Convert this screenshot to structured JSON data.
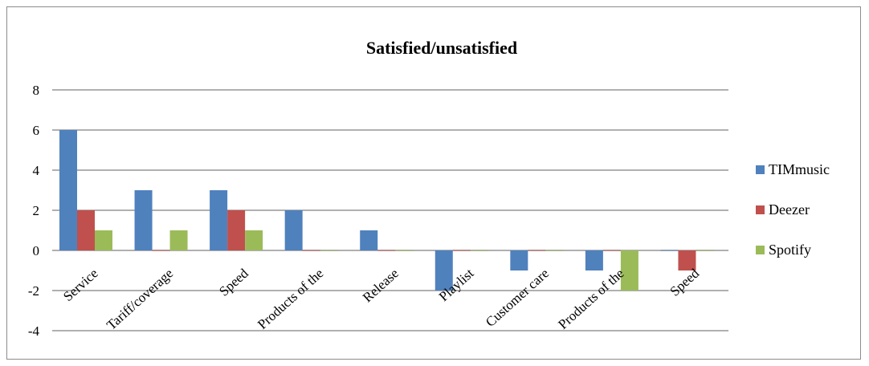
{
  "chart_data": {
    "type": "bar",
    "title": "Satisfied/unsatisfied",
    "xlabel": "",
    "ylabel": "",
    "categories": [
      "Service",
      "Tariff/coverage",
      "Speed",
      "Products of the",
      "Release",
      "Playlist",
      "Customer care",
      "Products of the",
      "Speed"
    ],
    "series": [
      {
        "name": "TIMmusic",
        "color": "#4f81bd",
        "values": [
          6,
          3,
          3,
          2,
          1,
          -2,
          -1,
          -1,
          0
        ]
      },
      {
        "name": "Deezer",
        "color": "#c0504d",
        "values": [
          2,
          0,
          2,
          0,
          0,
          0,
          0,
          0,
          -1
        ]
      },
      {
        "name": "Spotify",
        "color": "#9bbb59",
        "values": [
          1,
          1,
          1,
          0,
          0,
          0,
          0,
          -2,
          0
        ]
      }
    ],
    "ylim": [
      -4,
      8
    ],
    "yticks": [
      -4,
      -2,
      0,
      2,
      4,
      6,
      8
    ],
    "grid": true,
    "legend_position": "right"
  }
}
